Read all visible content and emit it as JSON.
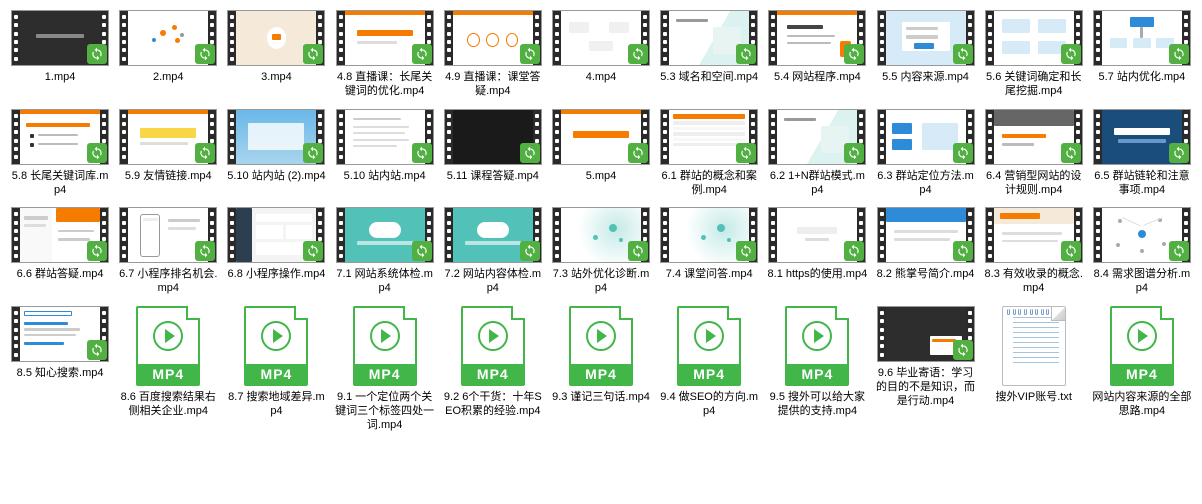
{
  "colors": {
    "background": "#ffffff",
    "text": "#000000",
    "mp4_green": "#42b649",
    "overlay_green": "#52b043",
    "film_strip": "#2a2a2a",
    "orange": "#f57c00",
    "blue": "#2e8bd8",
    "light_blue": "#d6eaf8",
    "dark_blue": "#1a4d7a",
    "teal": "#52c1b8",
    "beige": "#f5e9d9",
    "gray": "#888888",
    "light_gray": "#e6e6e6"
  },
  "overlay_icon_name": "sync-overlay-icon",
  "files": [
    {
      "name": "1.mp4",
      "type": "video",
      "art": "dark_text"
    },
    {
      "name": "2.mp4",
      "type": "video",
      "art": "orange_cluster"
    },
    {
      "name": "3.mp4",
      "type": "video",
      "art": "beige_02"
    },
    {
      "name": "4.8 直播课：长尾关键词的优化.mp4",
      "type": "video",
      "art": "orange_bar"
    },
    {
      "name": "4.9 直播课：课堂答疑.mp4",
      "type": "video",
      "art": "orange_circles"
    },
    {
      "name": "4.mp4",
      "type": "video",
      "art": "white_flow"
    },
    {
      "name": "5.3 域名和空间.mp4",
      "type": "video",
      "art": "hand_teal"
    },
    {
      "name": "5.4 网站程序.mp4",
      "type": "video",
      "art": "orange_slide"
    },
    {
      "name": "5.5 内容来源.mp4",
      "type": "video",
      "art": "blue_form"
    },
    {
      "name": "5.6 关键词确定和长尾挖掘.mp4",
      "type": "video",
      "art": "blue_icons"
    },
    {
      "name": "5.7 站内优化.mp4",
      "type": "video",
      "art": "blue_diagram"
    },
    {
      "name": "5.8 长尾关键词库.mp4",
      "type": "video",
      "art": "orange_list"
    },
    {
      "name": "5.9 友情链接.mp4",
      "type": "video",
      "art": "yellow_bar"
    },
    {
      "name": "5.10 站内站 (2).mp4",
      "type": "video",
      "art": "sky_card"
    },
    {
      "name": "5.10 站内站.mp4",
      "type": "video",
      "art": "white_list"
    },
    {
      "name": "5.11 课程答疑.mp4",
      "type": "video",
      "art": "dark_empty"
    },
    {
      "name": "5.mp4",
      "type": "video",
      "art": "orange_title"
    },
    {
      "name": "6.1 群站的概念和案例.mp4",
      "type": "video",
      "art": "table_orange"
    },
    {
      "name": "6.2 1+N群站模式.mp4",
      "type": "video",
      "art": "hand_teal"
    },
    {
      "name": "6.3 群站定位方法.mp4",
      "type": "video",
      "art": "blue_boxes"
    },
    {
      "name": "6.4 营销型网站的设计规则.mp4",
      "type": "video",
      "art": "orange_gray"
    },
    {
      "name": "6.5 群站链轮和注意事项.mp4",
      "type": "video",
      "art": "dark_blue"
    },
    {
      "name": "6.6 群站答疑.mp4",
      "type": "video",
      "art": "split_orange"
    },
    {
      "name": "6.7 小程序排名机会.mp4",
      "type": "video",
      "art": "phone_mock"
    },
    {
      "name": "6.8 小程序操作.mp4",
      "type": "video",
      "art": "dashboard"
    },
    {
      "name": "7.1 网站系统体检.mp4",
      "type": "video",
      "art": "teal_cloud"
    },
    {
      "name": "7.2 网站内容体检.mp4",
      "type": "video",
      "art": "teal_cloud"
    },
    {
      "name": "7.3 站外优化诊断.mp4",
      "type": "video",
      "art": "teal_swirl"
    },
    {
      "name": "7.4 课堂问答.mp4",
      "type": "video",
      "art": "teal_swirl"
    },
    {
      "name": "8.1 https的使用.mp4",
      "type": "video",
      "art": "white_center"
    },
    {
      "name": "8.2 熊掌号简介.mp4",
      "type": "video",
      "art": "blue_top"
    },
    {
      "name": "8.3 有效收录的概念.mp4",
      "type": "video",
      "art": "beige_header"
    },
    {
      "name": "8.4 需求图谱分析.mp4",
      "type": "video",
      "art": "network"
    },
    {
      "name": "8.5 知心搜索.mp4",
      "type": "video",
      "art": "search_page"
    },
    {
      "name": "8.6 百度搜索结果右侧相关企业.mp4",
      "type": "mp4icon"
    },
    {
      "name": "8.7 搜索地域差异.mp4",
      "type": "mp4icon"
    },
    {
      "name": "9.1 一个定位两个关键词三个标签四处一词.mp4",
      "type": "mp4icon"
    },
    {
      "name": "9.2 6个干货：十年SEO积累的经验.mp4",
      "type": "mp4icon"
    },
    {
      "name": "9.3 谨记三句话.mp4",
      "type": "mp4icon"
    },
    {
      "name": "9.4 做SEO的方向.mp4",
      "type": "mp4icon"
    },
    {
      "name": "9.5 搜外可以给大家提供的支持.mp4",
      "type": "mp4icon"
    },
    {
      "name": "9.6 毕业寄语：学习的目的不是知识，而是行动.mp4",
      "type": "video",
      "art": "dark_corner"
    },
    {
      "name": "搜外VIP账号.txt",
      "type": "txt"
    },
    {
      "name": "网站内容来源的全部思路.mp4",
      "type": "mp4icon"
    }
  ]
}
